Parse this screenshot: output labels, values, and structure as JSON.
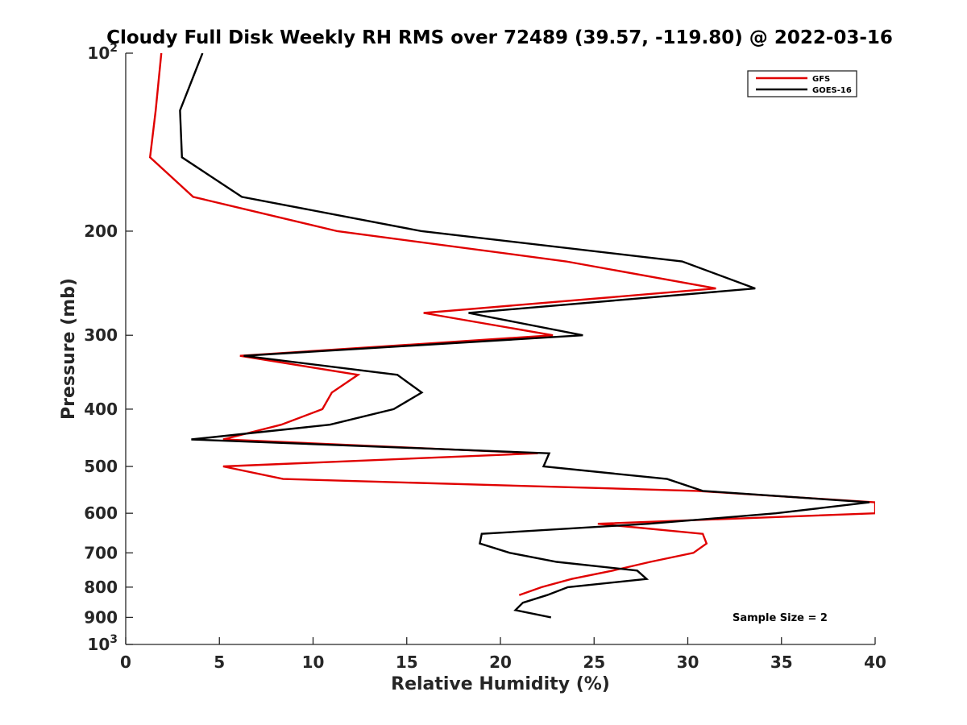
{
  "chart_data": {
    "type": "line",
    "title": "Cloudy Full Disk Weekly RH RMS over 72489 (39.57, -119.80) @ 2022-03-16",
    "xlabel": "Relative Humidity (%)",
    "ylabel": "Pressure (mb)",
    "xlim": [
      0,
      40
    ],
    "ylim": [
      100,
      1000
    ],
    "y_scale": "log",
    "y_reversed": true,
    "grid": false,
    "legend_position": "top-right",
    "annotation": "Sample Size = 2",
    "x_ticks": [
      0,
      5,
      10,
      15,
      20,
      25,
      30,
      35,
      40
    ],
    "x_tick_labels": [
      "0",
      "5",
      "10",
      "15",
      "20",
      "25",
      "30",
      "35",
      "40"
    ],
    "y_ticks": [
      100,
      200,
      300,
      400,
      500,
      600,
      700,
      800,
      900,
      1000
    ],
    "y_tick_labels": [
      {
        "base": "10",
        "exp": "2"
      },
      {
        "base": "200",
        "exp": ""
      },
      {
        "base": "300",
        "exp": ""
      },
      {
        "base": "400",
        "exp": ""
      },
      {
        "base": "500",
        "exp": ""
      },
      {
        "base": "600",
        "exp": ""
      },
      {
        "base": "700",
        "exp": ""
      },
      {
        "base": "800",
        "exp": ""
      },
      {
        "base": "900",
        "exp": ""
      },
      {
        "base": "10",
        "exp": "3"
      }
    ],
    "series": [
      {
        "name": "GFS",
        "color": "#e00000",
        "points": [
          {
            "x": 1.9,
            "y": 100
          },
          {
            "x": 1.6,
            "y": 125
          },
          {
            "x": 1.3,
            "y": 150
          },
          {
            "x": 3.6,
            "y": 175
          },
          {
            "x": 11.3,
            "y": 200
          },
          {
            "x": 23.5,
            "y": 225
          },
          {
            "x": 31.5,
            "y": 250
          },
          {
            "x": 15.9,
            "y": 275
          },
          {
            "x": 22.8,
            "y": 300
          },
          {
            "x": 6.1,
            "y": 325
          },
          {
            "x": 12.4,
            "y": 350
          },
          {
            "x": 11.0,
            "y": 375
          },
          {
            "x": 10.5,
            "y": 400
          },
          {
            "x": 8.3,
            "y": 425
          },
          {
            "x": 5.2,
            "y": 450
          },
          {
            "x": 22.0,
            "y": 475
          },
          {
            "x": 5.2,
            "y": 500
          },
          {
            "x": 8.4,
            "y": 525
          },
          {
            "x": 30.5,
            "y": 550
          },
          {
            "x": 40.0,
            "y": 575
          },
          {
            "x": 40.0,
            "y": 600
          },
          {
            "x": 25.2,
            "y": 625
          },
          {
            "x": 30.8,
            "y": 650
          },
          {
            "x": 31.0,
            "y": 675
          },
          {
            "x": 30.3,
            "y": 700
          },
          {
            "x": 28.0,
            "y": 725
          },
          {
            "x": 26.0,
            "y": 750
          },
          {
            "x": 23.8,
            "y": 775
          },
          {
            "x": 22.2,
            "y": 800
          },
          {
            "x": 21.0,
            "y": 825
          }
        ]
      },
      {
        "name": "GOES-16",
        "color": "#000000",
        "points": [
          {
            "x": 4.1,
            "y": 100
          },
          {
            "x": 2.9,
            "y": 125
          },
          {
            "x": 3.0,
            "y": 150
          },
          {
            "x": 6.2,
            "y": 175
          },
          {
            "x": 15.8,
            "y": 200
          },
          {
            "x": 29.7,
            "y": 225
          },
          {
            "x": 33.6,
            "y": 250
          },
          {
            "x": 18.3,
            "y": 275
          },
          {
            "x": 24.4,
            "y": 300
          },
          {
            "x": 6.3,
            "y": 325
          },
          {
            "x": 14.5,
            "y": 350
          },
          {
            "x": 15.8,
            "y": 375
          },
          {
            "x": 14.3,
            "y": 400
          },
          {
            "x": 10.9,
            "y": 425
          },
          {
            "x": 3.5,
            "y": 450
          },
          {
            "x": 22.6,
            "y": 475
          },
          {
            "x": 22.3,
            "y": 500
          },
          {
            "x": 28.9,
            "y": 525
          },
          {
            "x": 30.8,
            "y": 550
          },
          {
            "x": 39.7,
            "y": 575
          },
          {
            "x": 34.7,
            "y": 600
          },
          {
            "x": 27.9,
            "y": 625
          },
          {
            "x": 19.0,
            "y": 650
          },
          {
            "x": 18.9,
            "y": 675
          },
          {
            "x": 20.5,
            "y": 700
          },
          {
            "x": 23.0,
            "y": 725
          },
          {
            "x": 27.3,
            "y": 750
          },
          {
            "x": 27.8,
            "y": 775
          },
          {
            "x": 23.6,
            "y": 800
          },
          {
            "x": 22.5,
            "y": 825
          },
          {
            "x": 21.2,
            "y": 850
          },
          {
            "x": 20.8,
            "y": 875
          },
          {
            "x": 22.7,
            "y": 900
          }
        ]
      }
    ]
  }
}
